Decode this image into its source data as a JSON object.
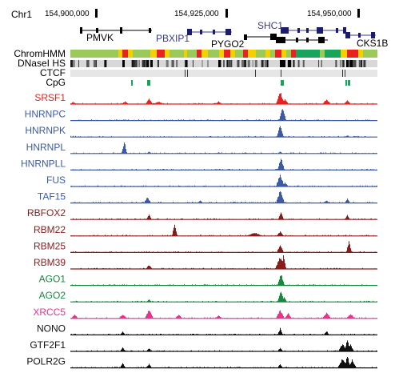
{
  "header": {
    "chrom": "Chr1",
    "coords": [
      "154,900,000",
      "154,925,000",
      "154,950,000"
    ]
  },
  "genes": [
    {
      "name": "PMVK",
      "color": "#000000"
    },
    {
      "name": "PBXIP1",
      "color": "#3a3a8c"
    },
    {
      "name": "PYGO2",
      "color": "#000000"
    },
    {
      "name": "SHC1",
      "color": "#3a3a8c"
    },
    {
      "name": "CKS1B",
      "color": "#000000"
    }
  ],
  "annotation_tracks": [
    {
      "name": "ChromHMM"
    },
    {
      "name": "DNaseI HS"
    },
    {
      "name": "CTCF"
    },
    {
      "name": "CpG"
    }
  ],
  "signal_tracks": [
    {
      "name": "SRSF1",
      "color": "#e8221e"
    },
    {
      "name": "HNRNPC",
      "color": "#3c5aa8"
    },
    {
      "name": "HNRNPK",
      "color": "#3c5aa8"
    },
    {
      "name": "HNRNPL",
      "color": "#3c5aa8"
    },
    {
      "name": "HNRNPLL",
      "color": "#3c5aa8"
    },
    {
      "name": "FUS",
      "color": "#3c5aa8"
    },
    {
      "name": "TAF15",
      "color": "#3c5aa8"
    },
    {
      "name": "RBFOX2",
      "color": "#8b1a1a"
    },
    {
      "name": "RBM22",
      "color": "#8b1a1a"
    },
    {
      "name": "RBM25",
      "color": "#8b1a1a"
    },
    {
      "name": "RBM39",
      "color": "#8b1a1a"
    },
    {
      "name": "AGO1",
      "color": "#158a3c"
    },
    {
      "name": "AGO2",
      "color": "#158a3c"
    },
    {
      "name": "XRCC5",
      "color": "#e8338c"
    },
    {
      "name": "NONO",
      "color": "#111111"
    },
    {
      "name": "GTF2F1",
      "color": "#111111"
    },
    {
      "name": "POLR2G",
      "color": "#111111"
    }
  ]
}
